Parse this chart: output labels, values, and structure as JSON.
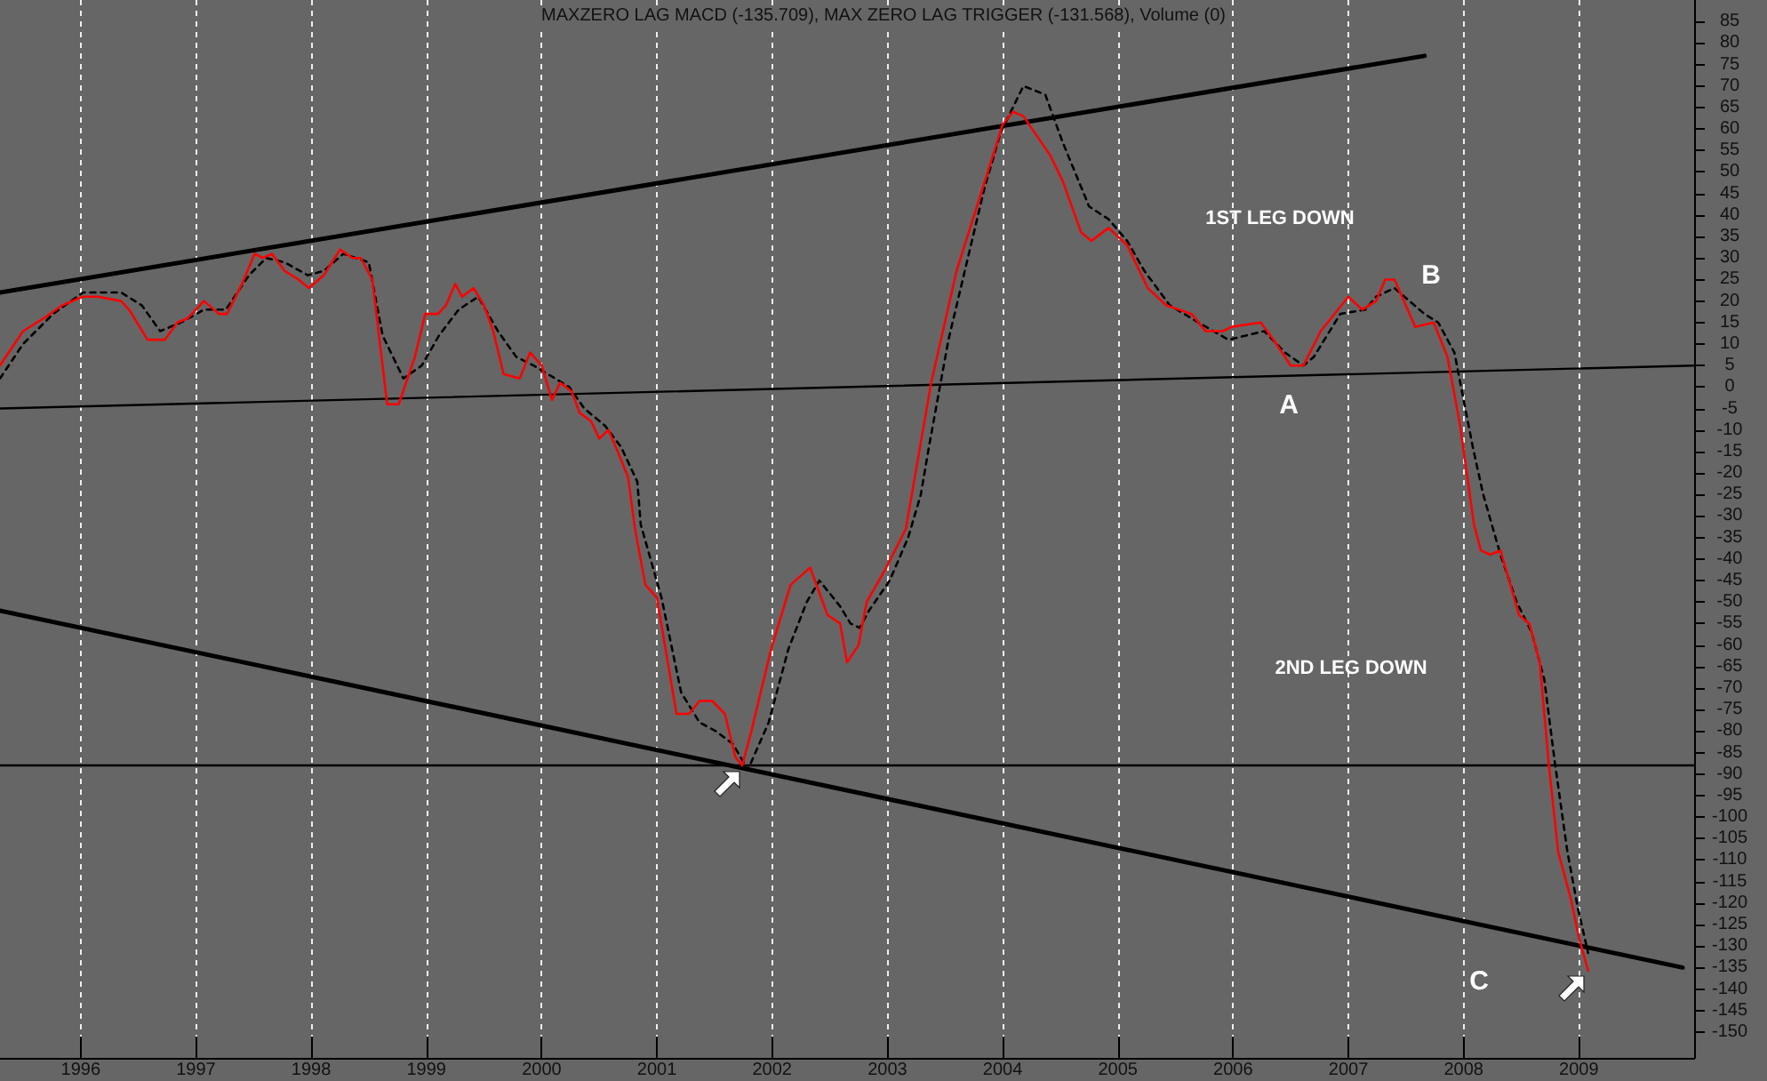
{
  "chart_data": {
    "type": "line",
    "title": "MAXZERO LAG MACD (-135.709), MAX ZERO LAG TRIGGER (-131.568), Volume (0)",
    "xlim": [
      1995.3,
      2010
    ],
    "xticks": [
      1996,
      1997,
      1998,
      1999,
      2000,
      2001,
      2002,
      2003,
      2004,
      2005,
      2006,
      2007,
      2008,
      2009
    ],
    "ylim": [
      -156,
      90
    ],
    "yticks": [
      -150,
      -145,
      -140,
      -135,
      -130,
      -125,
      -120,
      -115,
      -110,
      -105,
      -100,
      -95,
      -90,
      -85,
      -80,
      -75,
      -70,
      -65,
      -60,
      -55,
      -50,
      -45,
      -40,
      -35,
      -30,
      -25,
      -20,
      -15,
      -10,
      -5,
      0,
      5,
      10,
      15,
      20,
      25,
      30,
      35,
      40,
      45,
      50,
      55,
      60,
      65,
      70,
      75,
      80,
      85
    ],
    "grid": "x",
    "marker": "none",
    "series": [
      {
        "color": "#ff0000",
        "line_style": "solid",
        "x": [
          1995.3,
          1995.5,
          1995.68,
          1995.84,
          1996.02,
          1996.15,
          1996.35,
          1996.42,
          1996.58,
          1996.73,
          1996.84,
          1996.93,
          1997.07,
          1997.2,
          1997.27,
          1997.4,
          1997.51,
          1997.58,
          1997.66,
          1997.77,
          1997.89,
          1997.98,
          1998.11,
          1998.25,
          1998.36,
          1998.43,
          1998.53,
          1998.66,
          1998.76,
          1998.9,
          1998.99,
          1999.1,
          1999.17,
          1999.25,
          1999.31,
          1999.41,
          1999.5,
          1999.58,
          1999.67,
          1999.81,
          1999.9,
          2000.0,
          2000.09,
          2000.16,
          2000.26,
          2000.33,
          2000.43,
          2000.5,
          2000.58,
          2000.66,
          2000.75,
          2000.81,
          2000.9,
          2001.0,
          2001.17,
          2001.28,
          2001.37,
          2001.48,
          2001.59,
          2001.68,
          2001.74,
          2001.82,
          2001.99,
          2002.16,
          2002.33,
          2002.48,
          2002.59,
          2002.65,
          2002.75,
          2002.82,
          2002.99,
          2003.16,
          2003.38,
          2003.6,
          2003.8,
          2004.0,
          2004.09,
          2004.18,
          2004.41,
          2004.52,
          2004.68,
          2004.77,
          2004.92,
          2005.08,
          2005.26,
          2005.42,
          2005.64,
          2005.76,
          2005.91,
          2005.99,
          2006.24,
          2006.35,
          2006.5,
          2006.61,
          2006.76,
          2007.0,
          2007.12,
          2007.24,
          2007.32,
          2007.4,
          2007.58,
          2007.74,
          2007.86,
          2007.97,
          2008.09,
          2008.15,
          2008.23,
          2008.32,
          2008.48,
          2008.57,
          2008.66,
          2008.74,
          2008.82,
          2008.93,
          2009.0,
          2009.08
        ],
        "values": [
          5,
          13,
          16,
          19,
          21,
          21,
          20,
          18,
          11,
          11,
          15,
          16,
          20,
          17,
          17,
          24,
          31,
          30,
          31,
          27,
          25,
          23,
          26,
          32,
          30,
          30,
          25,
          -4,
          -4,
          7,
          17,
          17,
          19,
          24,
          21,
          23,
          19,
          13,
          3,
          2,
          8,
          5,
          -3,
          1,
          -1,
          -6,
          -8,
          -12,
          -10,
          -15,
          -21,
          -33,
          -46,
          -49,
          -76,
          -76,
          -73,
          -73,
          -76,
          -86,
          -88,
          -80,
          -61,
          -46,
          -42,
          -53,
          -55,
          -64,
          -60,
          -50,
          -42,
          -33,
          1,
          27,
          44,
          61,
          64,
          63,
          54,
          48,
          36,
          34,
          37,
          33,
          23,
          19,
          17,
          13,
          13,
          14,
          15,
          11,
          5,
          5,
          13,
          21,
          18,
          20,
          25,
          25,
          14,
          15,
          7,
          -9,
          -32,
          -38,
          -39,
          -38,
          -53,
          -55,
          -64,
          -88,
          -108,
          -119,
          -128,
          -135.7
        ]
      },
      {
        "color": "#000000",
        "line_style": "dashed",
        "x": [
          1995.3,
          1995.5,
          1995.76,
          1996.02,
          1996.35,
          1996.53,
          1996.69,
          1996.87,
          1997.07,
          1997.26,
          1997.46,
          1997.61,
          1997.77,
          1997.97,
          1998.11,
          1998.28,
          1998.5,
          1998.62,
          1998.8,
          1998.96,
          1999.11,
          1999.28,
          1999.45,
          1999.62,
          1999.78,
          1999.93,
          2000.24,
          2000.37,
          2000.55,
          2000.69,
          2000.83,
          2000.86,
          2001.04,
          2001.21,
          2001.37,
          2001.51,
          2001.66,
          2001.79,
          2001.97,
          2002.14,
          2002.3,
          2002.41,
          2002.59,
          2002.68,
          2002.76,
          2002.84,
          2003.02,
          2003.18,
          2003.29,
          2003.36,
          2003.53,
          2003.84,
          2003.98,
          2004.18,
          2004.37,
          2004.52,
          2004.75,
          2004.92,
          2005.08,
          2005.23,
          2005.45,
          2005.7,
          2005.96,
          2006.27,
          2006.45,
          2006.61,
          2006.7,
          2006.93,
          2007.15,
          2007.24,
          2007.4,
          2007.66,
          2007.78,
          2007.92,
          2008.08,
          2008.17,
          2008.32,
          2008.46,
          2008.59,
          2008.7,
          2008.79,
          2008.9,
          2008.99,
          2009.08
        ],
        "values": [
          2,
          10,
          17,
          22,
          22,
          19,
          13,
          15,
          18,
          18,
          26,
          30,
          29,
          26,
          27,
          31,
          29,
          12,
          2,
          5,
          12,
          18,
          21,
          13,
          7,
          5,
          0,
          -5,
          -9,
          -14,
          -22,
          -32,
          -49,
          -71,
          -78,
          -80,
          -83,
          -89,
          -78,
          -61,
          -50,
          -45,
          -51,
          -55,
          -56,
          -52,
          -45,
          -35,
          -25,
          -14,
          11,
          46,
          59,
          70,
          68,
          57,
          42,
          39,
          34,
          27,
          19,
          15,
          11,
          13,
          8,
          5,
          7,
          17,
          18,
          21,
          23,
          17,
          15,
          8,
          -14,
          -25,
          -39,
          -50,
          -57,
          -68,
          -87,
          -108,
          -121,
          -131.6
        ]
      },
      {
        "color": "#000000",
        "line_style": "solid",
        "x": [
          1995.3,
          2007.66
        ],
        "values": [
          22,
          77
        ]
      },
      {
        "color": "#000000",
        "line_style": "solid",
        "x": [
          1995.3,
          2010
        ],
        "values": [
          -5,
          5
        ]
      },
      {
        "color": "#000000",
        "line_style": "solid",
        "x": [
          1995.3,
          2009.9
        ],
        "values": [
          -52,
          -135
        ]
      }
    ],
    "ref_lines": [
      {
        "axis": "y",
        "value": -88,
        "color": "#000000",
        "line_style": "solid"
      }
    ],
    "annotations": [
      "1ST LEG DOWN",
      "2ND LEG DOWN",
      "A",
      "B",
      "C"
    ]
  }
}
